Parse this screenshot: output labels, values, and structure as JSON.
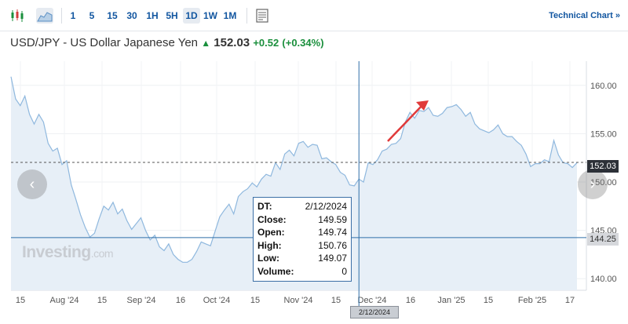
{
  "toolbar": {
    "intervals": [
      "1",
      "5",
      "15",
      "30",
      "1H",
      "5H",
      "1D",
      "1W",
      "1M"
    ],
    "active_interval": "1D",
    "technical_chart_label": "Technical Chart »"
  },
  "header": {
    "pair": "USD/JPY - US Dollar Japanese Yen",
    "price": "152.03",
    "change": "+0.52",
    "change_pct": "(+0.34%)"
  },
  "watermark": {
    "brand": "Investing",
    "suffix": ".com"
  },
  "tooltip": {
    "rows": [
      {
        "label": "DT:",
        "value": "2/12/2024"
      },
      {
        "label": "Close:",
        "value": "149.59"
      },
      {
        "label": "Open:",
        "value": "149.74"
      },
      {
        "label": "High:",
        "value": "150.76"
      },
      {
        "label": "Low:",
        "value": "149.07"
      },
      {
        "label": "Volume:",
        "value": "0"
      }
    ]
  },
  "crosshair_date_label": "2/12/2024",
  "current_price_label": "152.03",
  "crosshair_price_label": "144.25",
  "colors": {
    "line": "#8fb8de",
    "fill": "#e7eff7",
    "accent": "#1256a0",
    "up": "#1a8f3c",
    "arrow": "#e03a3a"
  },
  "chart_data": {
    "type": "area",
    "title": "USD/JPY - US Dollar Japanese Yen",
    "xlabel": "",
    "ylabel": "",
    "ylim": [
      138.8,
      162.5
    ],
    "y_ticks": [
      "140.00",
      "145.00",
      "150.00",
      "155.00",
      "160.00"
    ],
    "x_ticks": [
      "15",
      "Aug '24",
      "15",
      "Sep '24",
      "16",
      "Oct '24",
      "15",
      "Nov '24",
      "15",
      "Dec '24",
      "16",
      "Jan '25",
      "15",
      "Feb '25",
      "17"
    ],
    "grid": true,
    "values": [
      160.9,
      158.6,
      157.9,
      158.9,
      157.0,
      156.0,
      157.0,
      156.2,
      154.0,
      153.2,
      153.5,
      151.8,
      152.2,
      149.7,
      148.2,
      146.6,
      145.3,
      144.3,
      144.7,
      146.2,
      147.5,
      147.1,
      147.9,
      146.7,
      147.2,
      146.0,
      145.1,
      145.7,
      146.3,
      145.0,
      144.0,
      144.5,
      143.3,
      142.9,
      143.6,
      142.5,
      142.0,
      141.7,
      141.7,
      142.0,
      142.8,
      143.8,
      143.6,
      143.4,
      144.9,
      146.4,
      147.1,
      147.7,
      146.7,
      148.5,
      149.0,
      149.3,
      149.9,
      149.5,
      150.3,
      150.8,
      150.6,
      152.0,
      151.3,
      152.9,
      153.3,
      152.7,
      154.0,
      154.2,
      153.6,
      153.9,
      153.8,
      152.4,
      152.5,
      152.1,
      151.8,
      151.0,
      150.7,
      149.7,
      149.6,
      150.3,
      150.0,
      152.0,
      151.8,
      152.3,
      153.2,
      153.4,
      153.9,
      154.0,
      154.5,
      156.2,
      157.2,
      156.6,
      157.4,
      157.3,
      157.7,
      156.9,
      156.8,
      157.1,
      157.7,
      157.8,
      158.0,
      157.5,
      156.8,
      157.2,
      156.0,
      155.5,
      155.3,
      155.1,
      155.4,
      155.9,
      155.0,
      154.7,
      154.7,
      154.2,
      153.8,
      152.9,
      151.6,
      151.9,
      151.9,
      152.3,
      152.1,
      154.3,
      152.8,
      152.0,
      151.9,
      151.5,
      152.0
    ],
    "current_price": 152.03,
    "crosshair": {
      "date": "2/12/2024",
      "price": 144.25,
      "index": 75
    }
  }
}
